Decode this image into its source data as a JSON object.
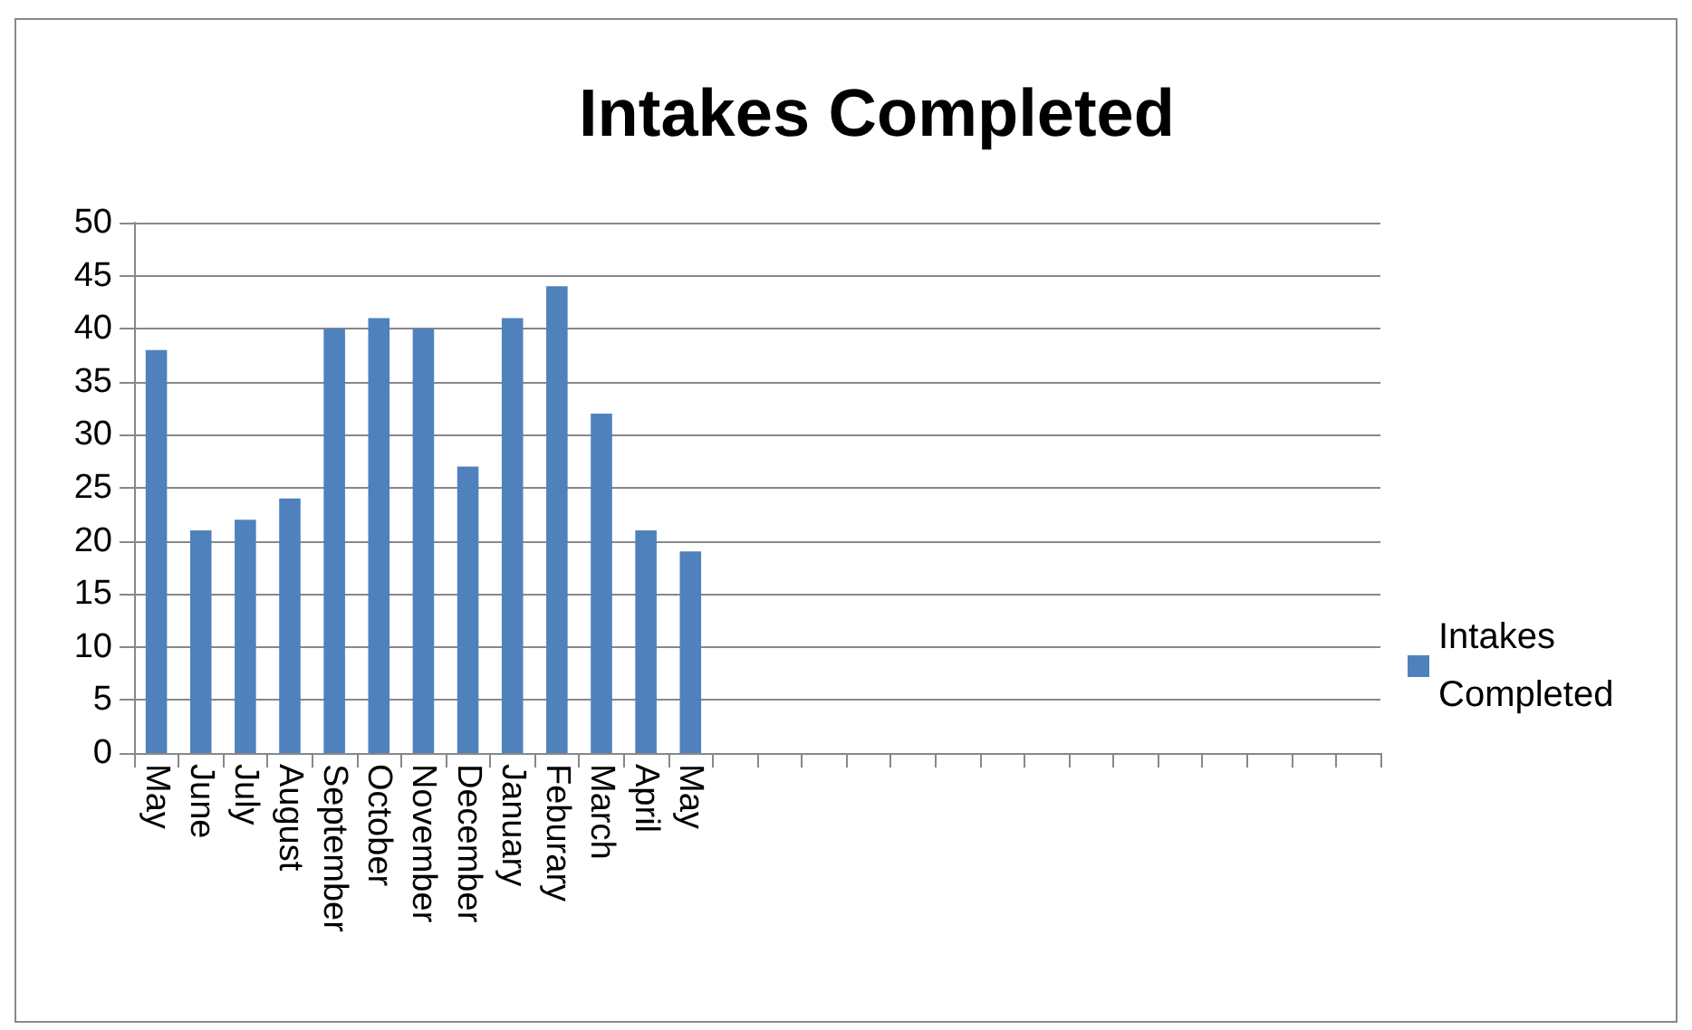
{
  "chart_data": {
    "type": "bar",
    "title": "Intakes Completed",
    "categories": [
      "May",
      "June",
      "July",
      "August",
      "September",
      "October",
      "November",
      "December",
      "January",
      "Feburary",
      "March",
      "April",
      "May",
      null,
      null,
      null,
      null,
      null,
      null,
      null,
      null,
      null,
      null,
      null,
      null,
      null,
      null,
      null
    ],
    "series": [
      {
        "name": "Intakes Completed",
        "color": "#4f81bd",
        "values": [
          38,
          21,
          22,
          24,
          40,
          41,
          40,
          27,
          41,
          44,
          32,
          21,
          19,
          null,
          null,
          null,
          null,
          null,
          null,
          null,
          null,
          null,
          null,
          null,
          null,
          null,
          null,
          null
        ]
      }
    ],
    "ylim": [
      0,
      50
    ],
    "yticks": [
      0,
      5,
      10,
      15,
      20,
      25,
      30,
      35,
      40,
      45,
      50
    ],
    "grid": "y",
    "legend": "right"
  }
}
